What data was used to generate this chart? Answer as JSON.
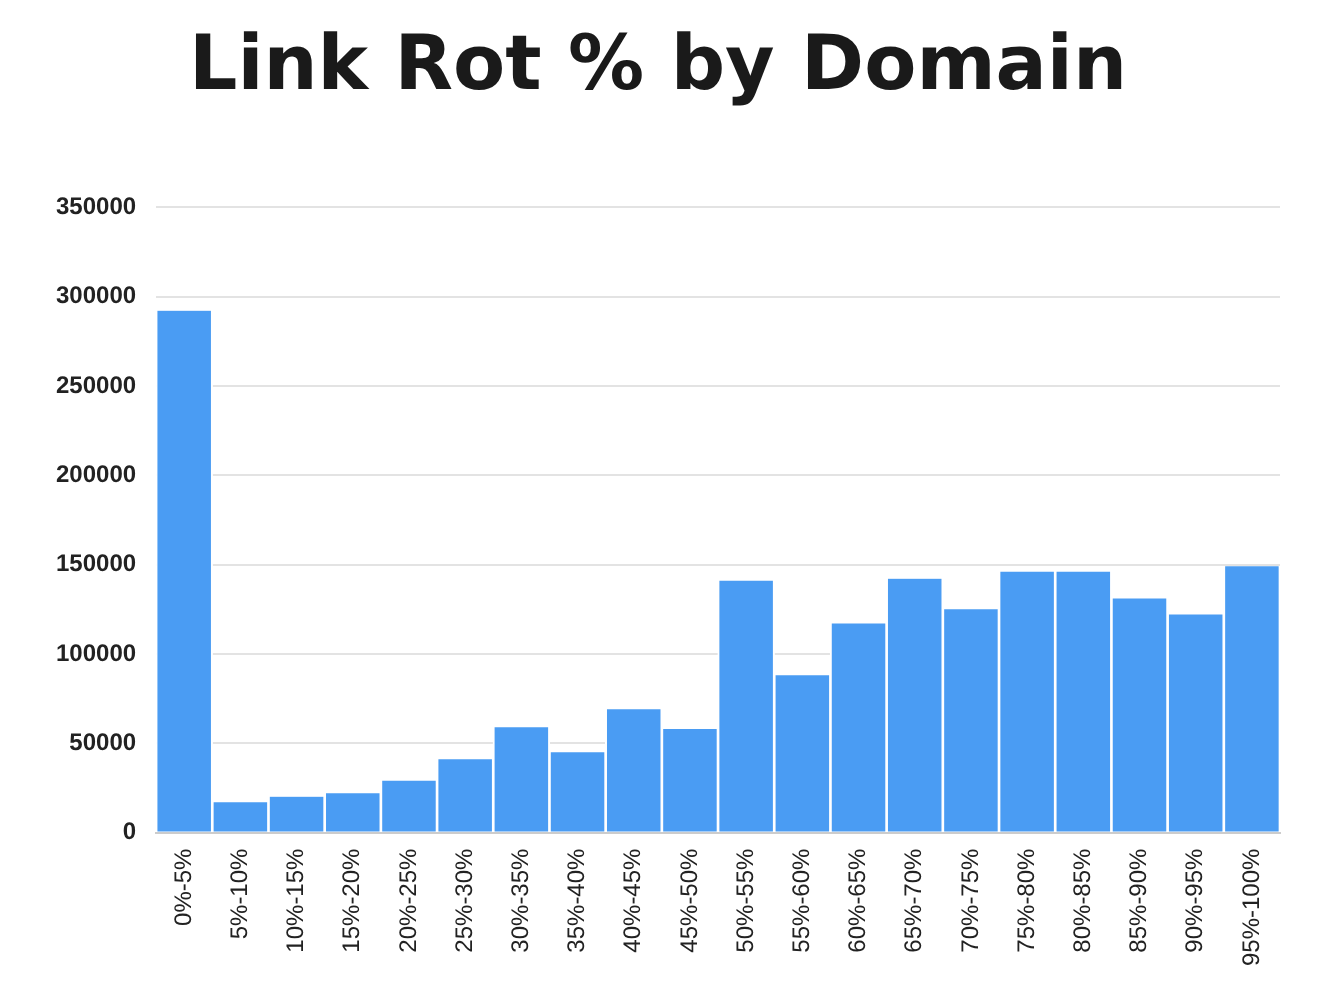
{
  "chart_data": {
    "type": "bar",
    "title": "Link Rot % by Domain",
    "categories": [
      "0%-5%",
      "5%-10%",
      "10%-15%",
      "15%-20%",
      "20%-25%",
      "25%-30%",
      "30%-35%",
      "35%-40%",
      "40%-45%",
      "45%-50%",
      "50%-55%",
      "55%-60%",
      "60%-65%",
      "65%-70%",
      "70%-75%",
      "75%-80%",
      "80%-85%",
      "85%-90%",
      "90%-95%",
      "95%-100%"
    ],
    "values": [
      292000,
      17000,
      20000,
      22000,
      29000,
      41000,
      59000,
      45000,
      69000,
      58000,
      141000,
      88000,
      117000,
      142000,
      125000,
      146000,
      146000,
      131000,
      122000,
      149000
    ],
    "color": "#4a9cf3",
    "ylim": [
      0,
      350000
    ],
    "yticks": [
      0,
      50000,
      100000,
      150000,
      200000,
      250000,
      300000,
      350000
    ],
    "grid": "y",
    "legend": false
  }
}
